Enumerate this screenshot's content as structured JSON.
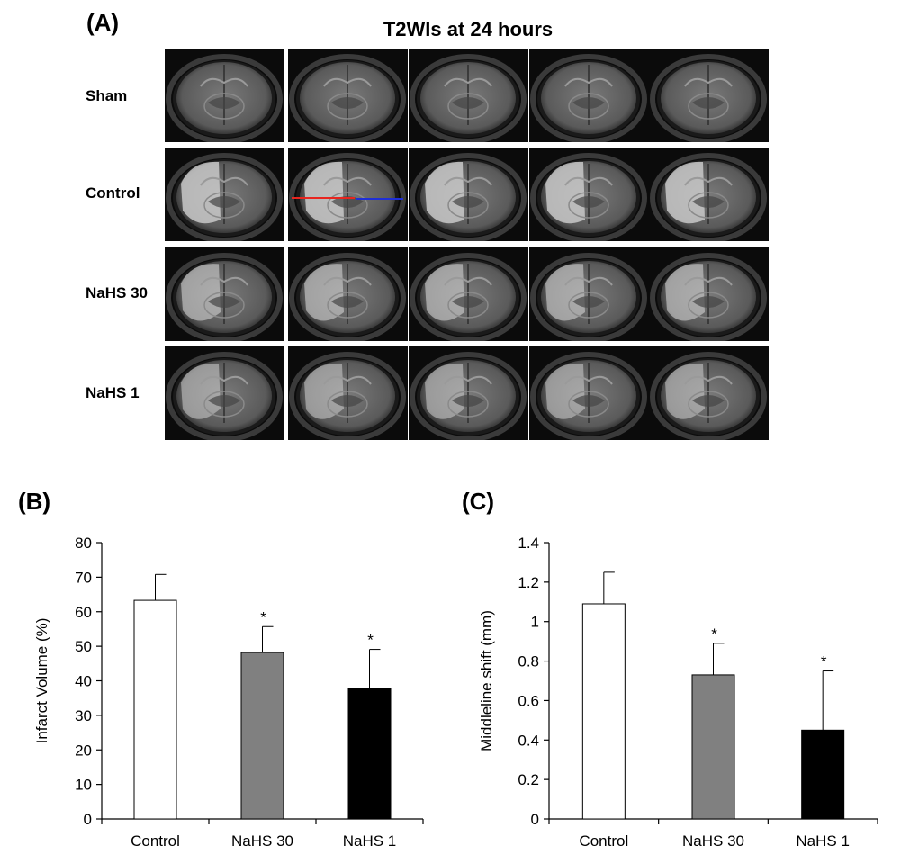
{
  "panel_a": {
    "label": "(A)",
    "title": "T2WIs at 24 hours",
    "rows": [
      {
        "label": "Sham",
        "lesion": 0
      },
      {
        "label": "Control",
        "lesion": 1.0
      },
      {
        "label": "NaHS 30",
        "lesion": 0.6
      },
      {
        "label": "NaHS 1",
        "lesion": 0.45
      }
    ],
    "columns": 5
  },
  "panel_b": {
    "label": "(B)"
  },
  "panel_c": {
    "label": "(C)"
  },
  "colors": {
    "control_bar": "#ffffff",
    "nahs30_bar": "#808080",
    "nahs1_bar": "#000000",
    "midline_left": "#e8251f",
    "midline_right": "#1f2fd6"
  },
  "chart_data": [
    {
      "type": "bar",
      "categories": [
        "Control",
        "NaHS 30",
        "NaHS 1"
      ],
      "values": [
        63.3,
        48.2,
        37.8
      ],
      "errors": [
        7.5,
        7.5,
        11.3
      ],
      "significance": [
        "",
        "*",
        "*"
      ],
      "ylabel": "Infarct Volume  (%)",
      "ylim": [
        0,
        80
      ],
      "yticks": [
        "0",
        "10",
        "20",
        "30",
        "40",
        "50",
        "60",
        "70",
        "80"
      ],
      "ytick_values": [
        0,
        10,
        20,
        30,
        40,
        50,
        60,
        70,
        80
      ],
      "grid": false
    },
    {
      "type": "bar",
      "categories": [
        "Control",
        "NaHS 30",
        "NaHS 1"
      ],
      "values": [
        1.09,
        0.73,
        0.45
      ],
      "errors": [
        0.16,
        0.16,
        0.3
      ],
      "significance": [
        "",
        "*",
        "*"
      ],
      "ylabel": "Middleline shift (mm)",
      "ylim": [
        0,
        1.4
      ],
      "yticks": [
        "0",
        "0.2",
        "0.4",
        "0.6",
        "0.8",
        "1",
        "1.2",
        "1.4"
      ],
      "ytick_values": [
        0,
        0.2,
        0.4,
        0.6,
        0.8,
        1.0,
        1.2,
        1.4
      ],
      "grid": false
    }
  ]
}
